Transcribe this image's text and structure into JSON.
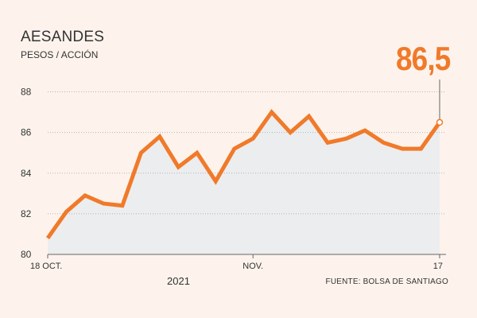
{
  "chart_data": {
    "type": "area",
    "title": "AESANDES",
    "subtitle": "PESOS / ACCIÓN",
    "last_value_label": "86,5",
    "year_label": "2021",
    "source": "FUENTE: BOLSA DE SANTIAGO",
    "x_ticks": [
      "18 OCT.",
      "NOV.",
      "17"
    ],
    "y_ticks": [
      "80",
      "82",
      "84",
      "86",
      "88"
    ],
    "ylim": [
      80,
      89
    ],
    "grid": true,
    "values": [
      80.8,
      82.1,
      82.9,
      82.5,
      82.4,
      85.0,
      85.8,
      84.3,
      85.0,
      83.6,
      85.2,
      85.7,
      87.0,
      86.0,
      86.8,
      85.5,
      85.7,
      86.1,
      85.5,
      85.2,
      85.2,
      86.5
    ],
    "colors": {
      "line": "#f07a2a",
      "area": "#ecedee",
      "grid": "#b5b5b5",
      "axis": "#666666"
    }
  }
}
